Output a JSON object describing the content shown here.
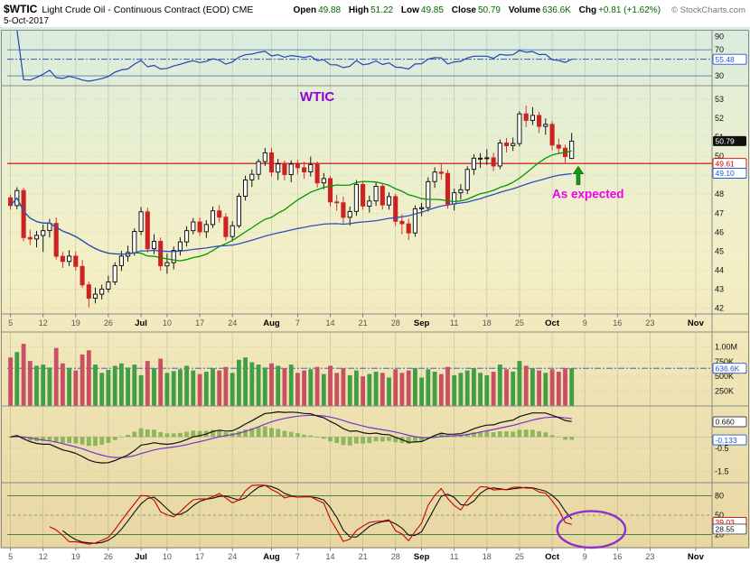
{
  "header": {
    "symbol": "$WTIC",
    "title": "Light Crude Oil - Continuous Contract (EOD) CME",
    "date": "5-Oct-2017",
    "copyright": "© StockCharts.com",
    "quote": {
      "open_l": "Open",
      "open_v": "49.88",
      "high_l": "High",
      "high_v": "51.22",
      "low_l": "Low",
      "low_v": "49.85",
      "close_l": "Close",
      "close_v": "50.79",
      "vol_l": "Volume",
      "vol_v": "636.6K",
      "chg_l": "Chg",
      "chg_v": "+0.81 (+1.62%)"
    }
  },
  "annotations": {
    "wtic": {
      "text": "WTIC",
      "color": "#9900cc",
      "x_index": 47,
      "price": 52.9
    },
    "as_expected": {
      "text": "As expected",
      "color": "#ee00ee",
      "x_index": 88.5,
      "price": 47.8
    },
    "arrow": {
      "color": "#149a14",
      "x_index": 87,
      "tip_price": 49.45,
      "tail_price": 48.5
    },
    "ellipse": {
      "color": "#8f2fd0",
      "x_index": 89,
      "value": 28,
      "rx_days": 5.2,
      "ry_units": 28
    }
  },
  "colors": {
    "bg_stops": [
      {
        "at": "0%",
        "color": "#d9ecdf"
      },
      {
        "at": "18%",
        "color": "#e6efd2"
      },
      {
        "at": "45%",
        "color": "#f4efc6"
      },
      {
        "at": "72%",
        "color": "#eee2b2"
      },
      {
        "at": "100%",
        "color": "#e8d7a3"
      }
    ],
    "grid": "rgba(110,110,110,0.30)",
    "border": "#8a8a8a",
    "up": "#000000",
    "up_fill": "#ffffff",
    "down": "#cc2222",
    "sma20": "#009900",
    "sma50": "#2f4fc0",
    "price_hline": "#cc0000",
    "rsi_line": "#2244bb",
    "rsi_level": "#5577aa",
    "vol_up": "#3f9e46",
    "vol_down": "#c94f63",
    "vol_line": "#2255cc",
    "macd_line": "#111111",
    "macd_signal": "#7a33cc",
    "macd_hist": "#7fae4f",
    "stoch_k": "#cc0000",
    "stoch_d": "#111111",
    "stoch_level": "#2e7d32",
    "stoch_mid": "#668866",
    "axis_text": "#111111",
    "tick_day": "#555555",
    "tick_month": "#000000",
    "badge_styles": {
      "close": {
        "bg": "#111111",
        "border": "none",
        "text": "#ffffff"
      },
      "red": {
        "bg": "#ffffff",
        "border": "#cc0000",
        "text": "#cc0000"
      },
      "blue": {
        "bg": "#ffffff",
        "border": "#2255cc",
        "text": "#2255cc"
      },
      "black": {
        "bg": "#ffffff",
        "border": "#444444",
        "text": "#111111"
      }
    }
  },
  "chart_data": {
    "type": "candlestick",
    "symbol": "$WTIC",
    "title": "Light Crude Oil - Continuous Contract (EOD) CME",
    "num_slots": 108,
    "x_ticks": [
      {
        "i": 0,
        "label": "5",
        "bold": false
      },
      {
        "i": 5,
        "label": "12",
        "bold": false
      },
      {
        "i": 10,
        "label": "19",
        "bold": false
      },
      {
        "i": 15,
        "label": "26",
        "bold": false
      },
      {
        "i": 20,
        "label": "Jul",
        "bold": true
      },
      {
        "i": 24,
        "label": "10",
        "bold": false
      },
      {
        "i": 29,
        "label": "17",
        "bold": false
      },
      {
        "i": 34,
        "label": "24",
        "bold": false
      },
      {
        "i": 40,
        "label": "Aug",
        "bold": true
      },
      {
        "i": 44,
        "label": "7",
        "bold": false
      },
      {
        "i": 49,
        "label": "14",
        "bold": false
      },
      {
        "i": 54,
        "label": "21",
        "bold": false
      },
      {
        "i": 59,
        "label": "28",
        "bold": false
      },
      {
        "i": 63,
        "label": "Sep",
        "bold": true
      },
      {
        "i": 68,
        "label": "11",
        "bold": false
      },
      {
        "i": 73,
        "label": "18",
        "bold": false
      },
      {
        "i": 78,
        "label": "25",
        "bold": false
      },
      {
        "i": 83,
        "label": "Oct",
        "bold": true
      },
      {
        "i": 88,
        "label": "9",
        "bold": false
      },
      {
        "i": 93,
        "label": "16",
        "bold": false
      },
      {
        "i": 98,
        "label": "23",
        "bold": false
      },
      {
        "i": 105,
        "label": "Nov",
        "bold": true
      }
    ],
    "candles": {
      "ohlc": [
        [
          47.81,
          47.96,
          47.19,
          47.4
        ],
        [
          47.4,
          48.36,
          47.2,
          48.19
        ],
        [
          48.19,
          48.33,
          45.52,
          45.72
        ],
        [
          45.72,
          46.13,
          45.32,
          45.64
        ],
        [
          45.64,
          46.07,
          45.2,
          45.83
        ],
        [
          45.83,
          46.4,
          44.96,
          46.08
        ],
        [
          46.08,
          46.7,
          45.72,
          46.46
        ],
        [
          46.46,
          46.77,
          44.56,
          44.73
        ],
        [
          44.73,
          44.96,
          44.12,
          44.46
        ],
        [
          44.46,
          45.06,
          44.22,
          44.74
        ],
        [
          44.74,
          44.98,
          43.98,
          44.2
        ],
        [
          44.2,
          44.53,
          43.07,
          43.23
        ],
        [
          43.23,
          43.4,
          42.05,
          42.53
        ],
        [
          42.53,
          43.08,
          42.25,
          42.74
        ],
        [
          42.74,
          43.24,
          42.47,
          43.01
        ],
        [
          43.01,
          43.71,
          42.83,
          43.38
        ],
        [
          43.38,
          44.42,
          43.22,
          44.24
        ],
        [
          44.24,
          45.02,
          43.96,
          44.74
        ],
        [
          44.74,
          45.29,
          44.44,
          44.93
        ],
        [
          44.93,
          46.2,
          44.76,
          46.04
        ],
        [
          46.04,
          47.32,
          45.85,
          47.07
        ],
        [
          47.07,
          47.28,
          44.93,
          45.13
        ],
        [
          45.13,
          45.9,
          44.84,
          45.52
        ],
        [
          45.52,
          45.72,
          43.97,
          44.23
        ],
        [
          44.23,
          44.88,
          43.82,
          44.4
        ],
        [
          44.4,
          45.25,
          44.05,
          45.04
        ],
        [
          45.04,
          45.73,
          44.77,
          45.49
        ],
        [
          45.49,
          46.31,
          45.25,
          46.08
        ],
        [
          46.08,
          46.74,
          45.89,
          46.54
        ],
        [
          46.54,
          46.77,
          45.81,
          46.02
        ],
        [
          46.02,
          46.63,
          45.7,
          46.4
        ],
        [
          46.4,
          47.35,
          46.22,
          47.12
        ],
        [
          47.12,
          47.42,
          46.51,
          46.79
        ],
        [
          46.79,
          46.99,
          45.56,
          45.77
        ],
        [
          45.77,
          46.57,
          45.53,
          46.34
        ],
        [
          46.34,
          48.05,
          46.22,
          47.89
        ],
        [
          47.89,
          48.97,
          47.66,
          48.75
        ],
        [
          48.75,
          49.3,
          48.38,
          49.04
        ],
        [
          49.04,
          49.85,
          48.76,
          49.71
        ],
        [
          49.71,
          50.43,
          49.48,
          50.17
        ],
        [
          50.17,
          50.43,
          48.92,
          49.16
        ],
        [
          49.16,
          49.86,
          48.74,
          49.59
        ],
        [
          49.59,
          49.76,
          48.73,
          49.03
        ],
        [
          49.03,
          49.78,
          48.62,
          49.58
        ],
        [
          49.58,
          49.81,
          49.04,
          49.39
        ],
        [
          49.39,
          49.7,
          48.81,
          49.17
        ],
        [
          49.17,
          49.97,
          48.93,
          49.56
        ],
        [
          49.56,
          49.72,
          48.34,
          48.59
        ],
        [
          48.59,
          49.11,
          48.26,
          48.82
        ],
        [
          48.82,
          48.95,
          47.36,
          47.59
        ],
        [
          47.59,
          47.97,
          47.12,
          47.55
        ],
        [
          47.55,
          47.87,
          46.46,
          46.78
        ],
        [
          46.78,
          47.35,
          46.35,
          47.09
        ],
        [
          47.09,
          48.74,
          46.86,
          48.51
        ],
        [
          48.51,
          48.66,
          47.19,
          47.37
        ],
        [
          47.37,
          47.92,
          47.03,
          47.64
        ],
        [
          47.64,
          48.61,
          47.38,
          48.41
        ],
        [
          48.41,
          48.55,
          47.19,
          47.43
        ],
        [
          47.43,
          48.1,
          47.18,
          47.87
        ],
        [
          47.87,
          48.02,
          46.33,
          46.57
        ],
        [
          46.57,
          46.94,
          45.89,
          46.44
        ],
        [
          46.44,
          46.7,
          45.58,
          45.96
        ],
        [
          45.96,
          47.41,
          45.76,
          47.23
        ],
        [
          47.23,
          47.53,
          46.84,
          47.29
        ],
        [
          47.29,
          48.88,
          47.08,
          48.66
        ],
        [
          48.66,
          49.41,
          48.33,
          49.16
        ],
        [
          49.16,
          49.63,
          48.76,
          49.09
        ],
        [
          49.09,
          49.28,
          47.24,
          47.48
        ],
        [
          47.48,
          48.29,
          47.14,
          48.07
        ],
        [
          48.07,
          48.52,
          47.71,
          48.23
        ],
        [
          48.23,
          49.47,
          48.01,
          49.3
        ],
        [
          49.3,
          50.1,
          49.02,
          49.89
        ],
        [
          49.89,
          50.16,
          49.38,
          49.89
        ],
        [
          49.89,
          50.36,
          49.54,
          49.91
        ],
        [
          49.91,
          50.18,
          49.22,
          49.48
        ],
        [
          49.48,
          50.88,
          49.31,
          50.69
        ],
        [
          50.69,
          50.95,
          50.19,
          50.55
        ],
        [
          50.55,
          50.97,
          50.27,
          50.66
        ],
        [
          50.66,
          52.36,
          50.51,
          52.22
        ],
        [
          52.22,
          52.65,
          51.52,
          51.88
        ],
        [
          51.88,
          52.57,
          51.63,
          52.14
        ],
        [
          52.14,
          52.33,
          51.22,
          51.56
        ],
        [
          51.56,
          51.98,
          51.12,
          51.67
        ],
        [
          51.67,
          51.83,
          50.31,
          50.58
        ],
        [
          50.58,
          50.92,
          50.1,
          50.42
        ],
        [
          50.42,
          50.6,
          49.66,
          49.98
        ],
        [
          49.88,
          51.22,
          49.85,
          50.79
        ]
      ]
    },
    "overlays": {
      "sma20_period": 20,
      "sma50_period": 50
    },
    "panels": {
      "rsi": {
        "type": "line",
        "period": 14,
        "ylim": [
          15,
          100
        ],
        "levels": [
          70,
          30
        ],
        "labels": [
          90,
          70,
          30
        ],
        "last_value": 55.48,
        "badge": {
          "text": "55.48",
          "value": 55.48,
          "style": "blue"
        }
      },
      "price": {
        "type": "candlestick",
        "ylim": [
          41.7,
          53.7
        ],
        "labels": [
          53,
          52,
          51,
          50,
          49,
          48,
          47,
          46,
          45,
          44,
          43,
          42
        ],
        "hline": 49.61,
        "badges": [
          {
            "text": "50.79",
            "value": 50.79,
            "style": "close"
          },
          {
            "text": "49.61",
            "value": 49.61,
            "style": "red"
          },
          {
            "text": "49.10",
            "value": 49.1,
            "style": "blue"
          }
        ]
      },
      "volume": {
        "type": "bar",
        "ylim": [
          0,
          1250
        ],
        "values_k": [
          820,
          910,
          1050,
          760,
          680,
          700,
          650,
          980,
          720,
          640,
          600,
          870,
          940,
          700,
          560,
          610,
          680,
          720,
          650,
          700,
          520,
          760,
          640,
          800,
          560,
          590,
          620,
          680,
          600,
          540,
          580,
          640,
          600,
          660,
          560,
          780,
          820,
          740,
          700,
          650,
          720,
          680,
          640,
          700,
          560,
          600,
          620,
          660,
          540,
          680,
          560,
          640,
          520,
          600,
          500,
          540,
          580,
          560,
          480,
          620,
          560,
          600,
          640,
          480,
          620,
          580,
          540,
          660,
          520,
          560,
          600,
          640,
          560,
          520,
          580,
          700,
          620,
          580,
          760,
          680,
          640,
          600,
          560,
          620,
          580,
          640,
          636.6
        ],
        "gridlines": [
          250,
          500,
          750,
          1000
        ],
        "labels": [
          {
            "v": 1000,
            "t": "1.00M"
          },
          {
            "v": 750,
            "t": "750K"
          },
          {
            "v": 500,
            "t": "500K"
          },
          {
            "v": 250,
            "t": "250K"
          }
        ],
        "current_line": 636.6,
        "badge": {
          "text": "636.6K",
          "value": 636.6,
          "style": "blue"
        }
      },
      "macd": {
        "type": "line+histogram",
        "params": [
          12,
          26,
          9
        ],
        "ylim": [
          -2.0,
          1.35
        ],
        "labels": [
          {
            "v": -0.5,
            "t": "-0.5"
          },
          {
            "v": -1.5,
            "t": "-1.5"
          }
        ],
        "badges": [
          {
            "text": "0.660",
            "value": 0.66,
            "style": "black"
          },
          {
            "text": "-0.133",
            "value": -0.133,
            "style": "blue"
          }
        ]
      },
      "stoch": {
        "type": "line",
        "params": [
          14,
          3,
          3
        ],
        "ylim": [
          0,
          100
        ],
        "levels": [
          80,
          50,
          20
        ],
        "labels": [
          80,
          50,
          20
        ],
        "badges": [
          {
            "text": "39.03",
            "value": 39.03,
            "style": "red"
          },
          {
            "text": "28.55",
            "value": 28.55,
            "style": "black"
          }
        ]
      }
    }
  }
}
